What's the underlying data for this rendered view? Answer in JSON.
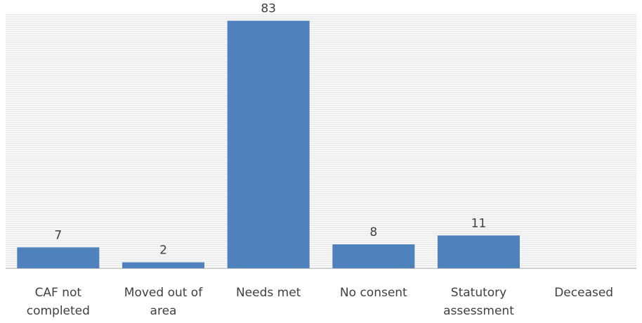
{
  "chart_data": {
    "type": "bar",
    "title": "",
    "xlabel": "",
    "ylabel": "",
    "categories": [
      [
        "CAF not",
        "completed"
      ],
      [
        "Moved out of",
        "area"
      ],
      [
        "Needs met"
      ],
      [
        "No consent"
      ],
      [
        "Statutory",
        "assessment"
      ],
      [
        "Deceased"
      ]
    ],
    "values": [
      7,
      2,
      83,
      8,
      11,
      null
    ],
    "data_labels": [
      "7",
      "2",
      "83",
      "8",
      "11",
      ""
    ],
    "ylim": [
      0,
      85
    ],
    "grid": true,
    "legend": "none",
    "colors": {
      "bar": "#4f81bd",
      "grid": "#d9d9d9",
      "axis": "#bfbfbf",
      "text": "#404040"
    }
  }
}
